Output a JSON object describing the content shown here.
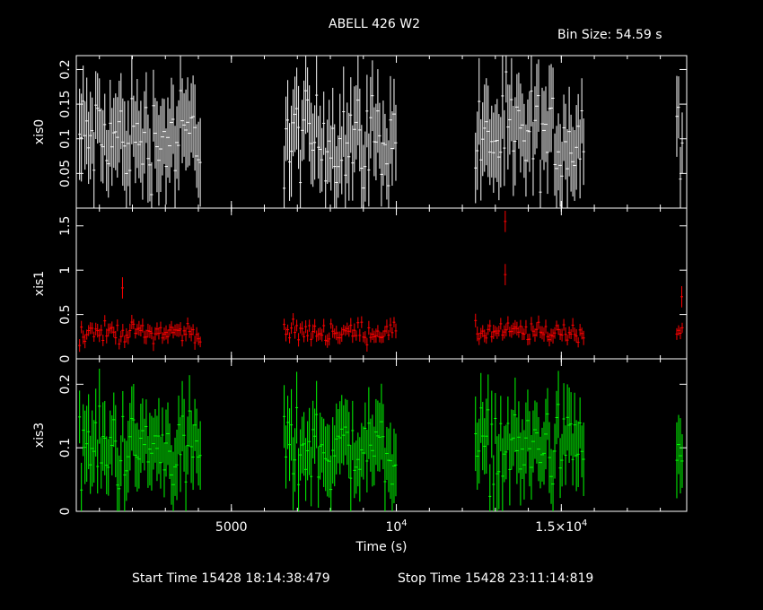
{
  "header": {
    "title": "ABELL 426 W2",
    "bin_size": "Bin Size: 54.59 s"
  },
  "footer": {
    "start_time": "Start Time 15428 18:14:38:479",
    "stop_time": "Stop Time 15428 23:11:14:819"
  },
  "colors": {
    "background": "#000000",
    "axes": "#ffffff",
    "xis0": "#ffffff",
    "xis1": "#ff0000",
    "xis3": "#00ff00"
  },
  "chart_data": {
    "type": "scatter",
    "title": "ABELL 426 W2",
    "xlabel": "Time (s)",
    "xlim": [
      300,
      18800
    ],
    "x_ticks": [
      {
        "value": 5000,
        "label": "5000"
      },
      {
        "value": 10000,
        "label": "10^4"
      },
      {
        "value": 15000,
        "label": "1.5×10^4"
      }
    ],
    "segments": [
      [
        400,
        4100
      ],
      [
        6600,
        10000
      ],
      [
        12400,
        15700
      ],
      [
        18500,
        18700
      ]
    ],
    "bin_size": 54.59,
    "panels": [
      {
        "name": "xis0",
        "ylabel": "xis0",
        "ylim": [
          0,
          0.22
        ],
        "y_ticks": [
          {
            "value": 0,
            "label": ""
          },
          {
            "value": 0.05,
            "label": "0.05"
          },
          {
            "value": 0.1,
            "label": "0.1"
          },
          {
            "value": 0.15,
            "label": "0.15"
          },
          {
            "value": 0.2,
            "label": "0.2"
          }
        ],
        "color": "#ffffff",
        "mean": 0.1,
        "spread": 0.05,
        "err": 0.055,
        "spikes": []
      },
      {
        "name": "xis1",
        "ylabel": "xis1",
        "ylim": [
          0,
          1.7
        ],
        "y_ticks": [
          {
            "value": 0,
            "label": "0"
          },
          {
            "value": 0.5,
            "label": "0.5"
          },
          {
            "value": 1,
            "label": "1"
          },
          {
            "value": 1.5,
            "label": "1.5"
          }
        ],
        "color": "#ff0000",
        "mean": 0.3,
        "spread": 0.08,
        "err": 0.07,
        "spikes": [
          {
            "x": 13300,
            "y": 1.55
          },
          {
            "x": 13300,
            "y": 0.95
          },
          {
            "x": 1700,
            "y": 0.8
          },
          {
            "x": 18650,
            "y": 0.7
          }
        ]
      },
      {
        "name": "xis3",
        "ylabel": "xis3",
        "ylim": [
          0,
          0.24
        ],
        "y_ticks": [
          {
            "value": 0,
            "label": "0"
          },
          {
            "value": 0.1,
            "label": "0.1"
          },
          {
            "value": 0.2,
            "label": "0.2"
          }
        ],
        "color": "#00ff00",
        "mean": 0.1,
        "spread": 0.045,
        "err": 0.05,
        "spikes": []
      }
    ]
  }
}
